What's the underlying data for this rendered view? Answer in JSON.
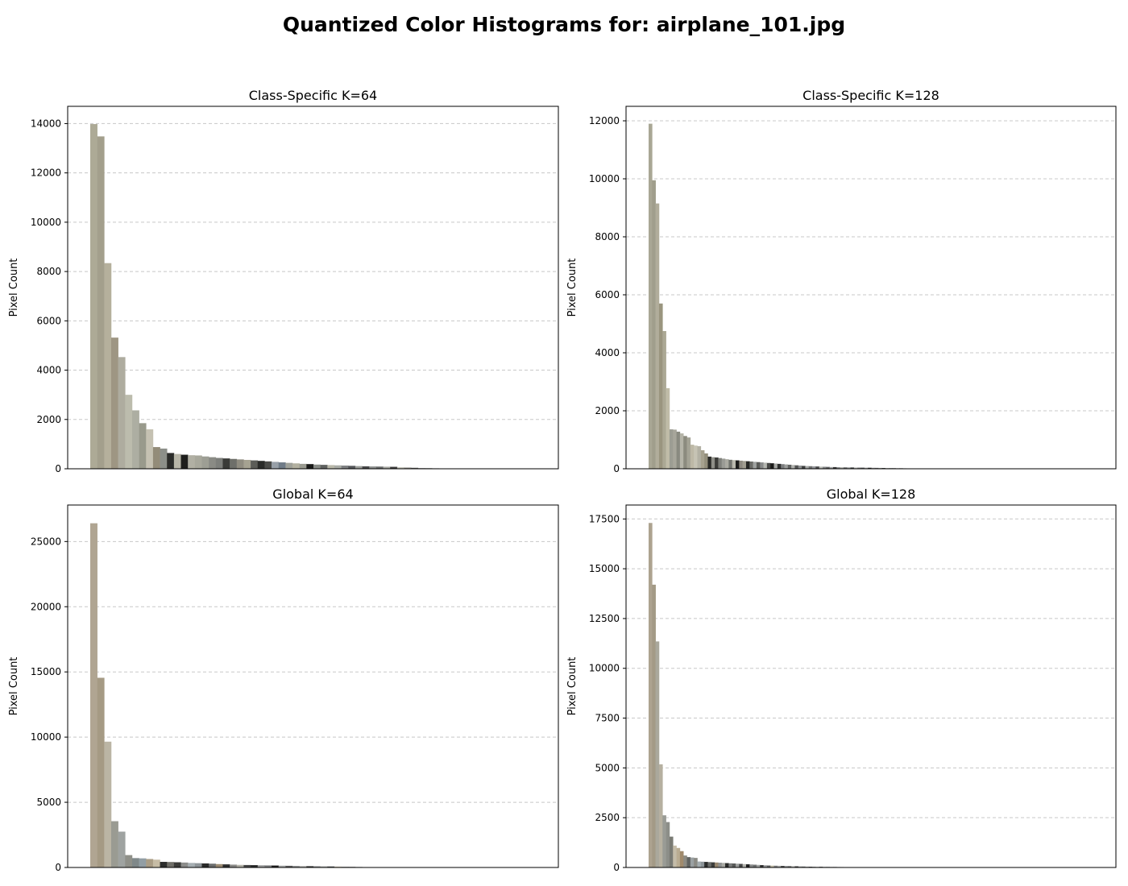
{
  "title": "Quantized Color Histograms for: airplane_101.jpg",
  "chart_data": [
    {
      "type": "bar",
      "title": "Class-Specific K=64",
      "ylabel": "Pixel Count",
      "xlabel": "",
      "ylim": [
        0,
        14700
      ],
      "yticks": [
        0,
        2000,
        4000,
        6000,
        8000,
        10000,
        12000,
        14000
      ],
      "grid": "y-dashed",
      "values": [
        13980,
        13480,
        8340,
        5320,
        4530,
        3000,
        2370,
        1850,
        1600,
        880,
        820,
        640,
        600,
        570,
        550,
        540,
        500,
        470,
        440,
        420,
        400,
        380,
        360,
        340,
        320,
        300,
        280,
        260,
        240,
        220,
        200,
        190,
        170,
        160,
        150,
        140,
        130,
        120,
        110,
        100,
        95,
        90,
        85,
        80,
        60,
        50,
        40,
        30,
        25,
        20,
        15,
        10
      ],
      "colors": [
        "#adaa96",
        "#a39f8c",
        "#b5b09c",
        "#9e9683",
        "#aeac9f",
        "#bcbcad",
        "#adaea2",
        "#999a8c",
        "#c5c1b2",
        "#938c79",
        "#8c8f89",
        "#2b2c2a",
        "#b8b6a8",
        "#1e1e1c",
        "#b1b0a4",
        "#a8a89c",
        "#9d9e94",
        "#8a8b85",
        "#7d7f7b",
        "#3a3b38",
        "#6e6f6a",
        "#8f8c80",
        "#a5a291",
        "#5c5d58",
        "#2a2b29",
        "#4a4b48",
        "#98a0a8",
        "#707c88",
        "#a0a29a",
        "#b2b0a0",
        "#9a9b91",
        "#1a1a19",
        "#888b86",
        "#606260",
        "#b9b8aa",
        "#a9aca6",
        "#7e8082",
        "#55575a",
        "#9c9e9a",
        "#474849",
        "#8d8f8e",
        "#6a6c6c",
        "#a6a8a2",
        "#3e3f3e",
        "#c1c0b5",
        "#8a8884",
        "#5e5f5e",
        "#999a98",
        "#777877",
        "#aaaaa5",
        "#525352",
        "#8f908f"
      ]
    },
    {
      "type": "bar",
      "title": "Class-Specific K=128",
      "ylabel": "Pixel Count",
      "xlabel": "",
      "ylim": [
        0,
        12500
      ],
      "yticks": [
        0,
        2000,
        4000,
        6000,
        8000,
        10000,
        12000
      ],
      "grid": "y-dashed",
      "values": [
        11900,
        9950,
        9150,
        5700,
        4750,
        2780,
        1360,
        1350,
        1280,
        1220,
        1130,
        1080,
        830,
        800,
        780,
        640,
        530,
        420,
        400,
        390,
        370,
        350,
        330,
        310,
        300,
        290,
        280,
        270,
        260,
        250,
        240,
        230,
        220,
        210,
        200,
        190,
        180,
        170,
        160,
        150,
        140,
        130,
        120,
        110,
        100,
        95,
        90,
        85,
        80,
        75,
        70,
        65,
        60,
        58,
        55,
        52,
        50,
        48,
        46,
        44,
        42,
        40,
        38,
        36,
        34,
        32,
        30,
        28,
        26,
        24,
        22,
        20,
        18,
        16,
        14,
        12,
        10,
        8,
        6
      ],
      "colors": [
        "#a9a795",
        "#a09e8c",
        "#b1ad9b",
        "#9a957f",
        "#aba894",
        "#c0bca8",
        "#9c9d93",
        "#a7a69b",
        "#898a80",
        "#b5b4a8",
        "#8c8b7f",
        "#a4a395",
        "#bdb8a6",
        "#c6c3b4",
        "#b3b1a4",
        "#a6a18e",
        "#938e7b",
        "#2a2a27",
        "#8f8f88",
        "#3b3b38",
        "#7f807b",
        "#9a9b95",
        "#aaaaa1",
        "#73746f",
        "#bab9ae",
        "#1c1c1b",
        "#8d8980",
        "#a19e91",
        "#262725",
        "#6b6c68",
        "#9fa2a0",
        "#5a5b58",
        "#888a8a",
        "#b4b6b0",
        "#484947",
        "#1a1a19",
        "#a6a7a3",
        "#2f3030",
        "#7a7c7d",
        "#9c9e9c",
        "#626463",
        "#b0b1ad",
        "#535454",
        "#8e9091",
        "#3e3f3f",
        "#a7aaa8",
        "#6f7171",
        "#95979a",
        "#4c4d4e",
        "#babbb6",
        "#828485",
        "#5e6061",
        "#a1a3a3",
        "#373838",
        "#8b8d8e",
        "#adaeaa",
        "#686a6b",
        "#999b9c",
        "#424344",
        "#b5b6b3",
        "#7b7d7e",
        "#585a5b",
        "#a4a6a6",
        "#303131",
        "#8f9192",
        "#707273",
        "#9e9f9d",
        "#4a4b4c",
        "#b2b3af",
        "#838586",
        "#626465",
        "#a8aaa9",
        "#3a3b3b",
        "#939596",
        "#6d6f70",
        "#8a8c8c",
        "#555657",
        "#a0a2a1",
        "#7c7e7f"
      ]
    },
    {
      "type": "bar",
      "title": "Global K=64",
      "ylabel": "Pixel Count",
      "xlabel": "",
      "ylim": [
        0,
        27800
      ],
      "yticks": [
        0,
        5000,
        10000,
        15000,
        20000,
        25000
      ],
      "grid": "y-dashed",
      "values": [
        26400,
        14550,
        9650,
        3550,
        2750,
        950,
        720,
        700,
        650,
        600,
        430,
        420,
        400,
        380,
        350,
        330,
        310,
        290,
        260,
        240,
        220,
        200,
        190,
        180,
        170,
        160,
        150,
        140,
        130,
        120,
        110,
        100,
        95,
        90,
        80,
        70,
        60,
        50,
        40,
        30,
        25,
        20,
        15
      ],
      "colors": [
        "#b0a592",
        "#a59a84",
        "#bbb5a4",
        "#9a9b92",
        "#9fa3a1",
        "#8f9089",
        "#7f8889",
        "#929ea4",
        "#aa9d85",
        "#c6bca5",
        "#2c2d2c",
        "#6f6e68",
        "#3b3b39",
        "#8c8d8b",
        "#a6aeb2",
        "#8e9498",
        "#2a2b2a",
        "#6b6d6d",
        "#9c8c74",
        "#2e2f2f",
        "#8a8a87",
        "#b3b2a8",
        "#474848",
        "#2a2b2b",
        "#9a9c9b",
        "#7b7d7e",
        "#1e1f1f",
        "#a3a5a5",
        "#5b5c5d",
        "#909293",
        "#b1b2ae",
        "#343535",
        "#868889",
        "#a9aba9",
        "#4e4f50",
        "#c2bda8",
        "#9d9f9f",
        "#747676",
        "#8d8f90",
        "#5f6061",
        "#b7b8b4",
        "#a2a4a4",
        "#6b6d6e"
      ]
    },
    {
      "type": "bar",
      "title": "Global K=128",
      "ylabel": "Pixel Count",
      "xlabel": "",
      "ylim": [
        0,
        18200
      ],
      "yticks": [
        0,
        2500,
        5000,
        7500,
        10000,
        12500,
        15000,
        17500
      ],
      "grid": "y-dashed",
      "values": [
        17300,
        14200,
        11350,
        5180,
        2620,
        2280,
        1550,
        1100,
        980,
        820,
        600,
        520,
        500,
        480,
        300,
        290,
        280,
        270,
        260,
        250,
        240,
        230,
        220,
        210,
        200,
        190,
        180,
        170,
        160,
        150,
        140,
        130,
        120,
        110,
        100,
        95,
        90,
        85,
        80,
        75,
        70,
        65,
        60,
        55,
        50,
        45,
        40,
        38,
        36,
        34,
        32,
        30,
        28,
        26,
        24,
        22,
        20,
        18,
        16,
        14,
        12,
        10,
        8
      ],
      "colors": [
        "#ada390",
        "#a39a86",
        "#aaa89c",
        "#b6b0a0",
        "#999b95",
        "#8c8e88",
        "#7a7b74",
        "#c4bca8",
        "#b9ac92",
        "#a08a6c",
        "#8c8a82",
        "#606260",
        "#9aa0a2",
        "#8a8a84",
        "#a4acb0",
        "#8c9498",
        "#2d2e2d",
        "#6a6c6a",
        "#3c3d3b",
        "#96866e",
        "#8e9090",
        "#a8a9a4",
        "#2a2b2a",
        "#7a7c7c",
        "#565857",
        "#9c9e9d",
        "#444545",
        "#b3b4ae",
        "#1f2020",
        "#888a8a",
        "#6e7070",
        "#a1a3a2",
        "#333434",
        "#929495",
        "#5e6060",
        "#c2bca6",
        "#7f8182",
        "#a9aba8",
        "#4a4b4b",
        "#8f9192",
        "#666868",
        "#b0b1ad",
        "#3a3b3b",
        "#9a9c9c",
        "#727475",
        "#a5a7a6",
        "#525354",
        "#878989",
        "#b6b7b3",
        "#2c2d2d",
        "#9d9f9f",
        "#6a6c6d",
        "#8e9091",
        "#474849",
        "#a2a4a3",
        "#7c7e7f",
        "#b2b3af",
        "#5a5c5c",
        "#949697",
        "#3f4040",
        "#8a8c8d",
        "#a8aaa8",
        "#6f7172"
      ]
    }
  ]
}
